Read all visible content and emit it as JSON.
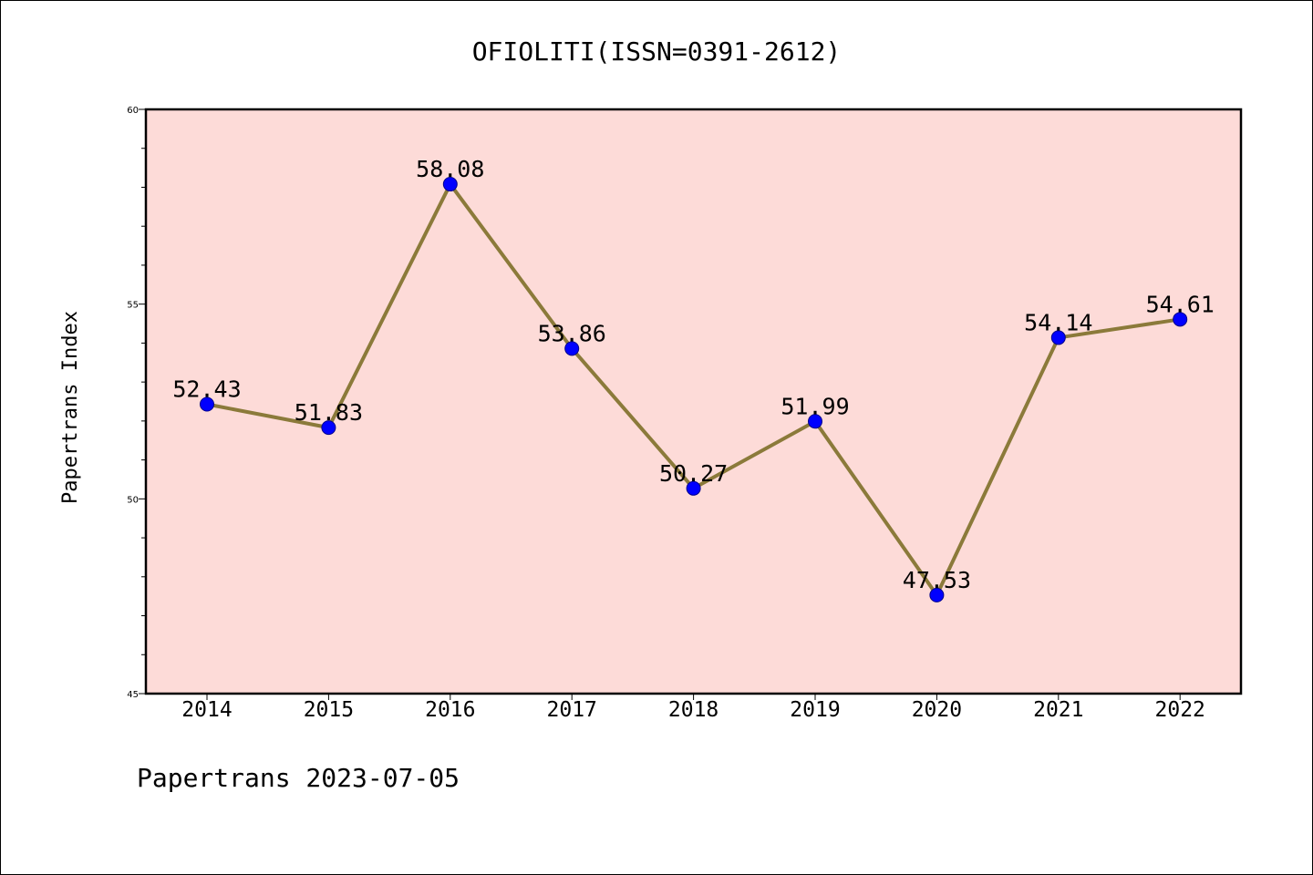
{
  "chart_data": {
    "type": "line",
    "title": "OFIOLITI(ISSN=0391-2612)",
    "xlabel": "",
    "ylabel": "Papertrans Index",
    "categories": [
      "2014",
      "2015",
      "2016",
      "2017",
      "2018",
      "2019",
      "2020",
      "2021",
      "2022"
    ],
    "series": [
      {
        "values": [
          52.43,
          51.83,
          58.08,
          53.86,
          50.27,
          51.99,
          47.53,
          54.14,
          54.61
        ]
      }
    ],
    "data_labels": [
      "52.43",
      "51.83",
      "58.08",
      "53.86",
      "50.27",
      "51.99",
      "47.53",
      "54.14",
      "54.61"
    ],
    "ylim": [
      45,
      60
    ],
    "yticks": [
      "45",
      "50",
      "55",
      "60"
    ],
    "grid": false,
    "colors": {
      "plot_background": "#fddbd8",
      "line": "#8b7a3a",
      "marker": "#0000ff"
    }
  },
  "footer": "Papertrans 2023-07-05"
}
